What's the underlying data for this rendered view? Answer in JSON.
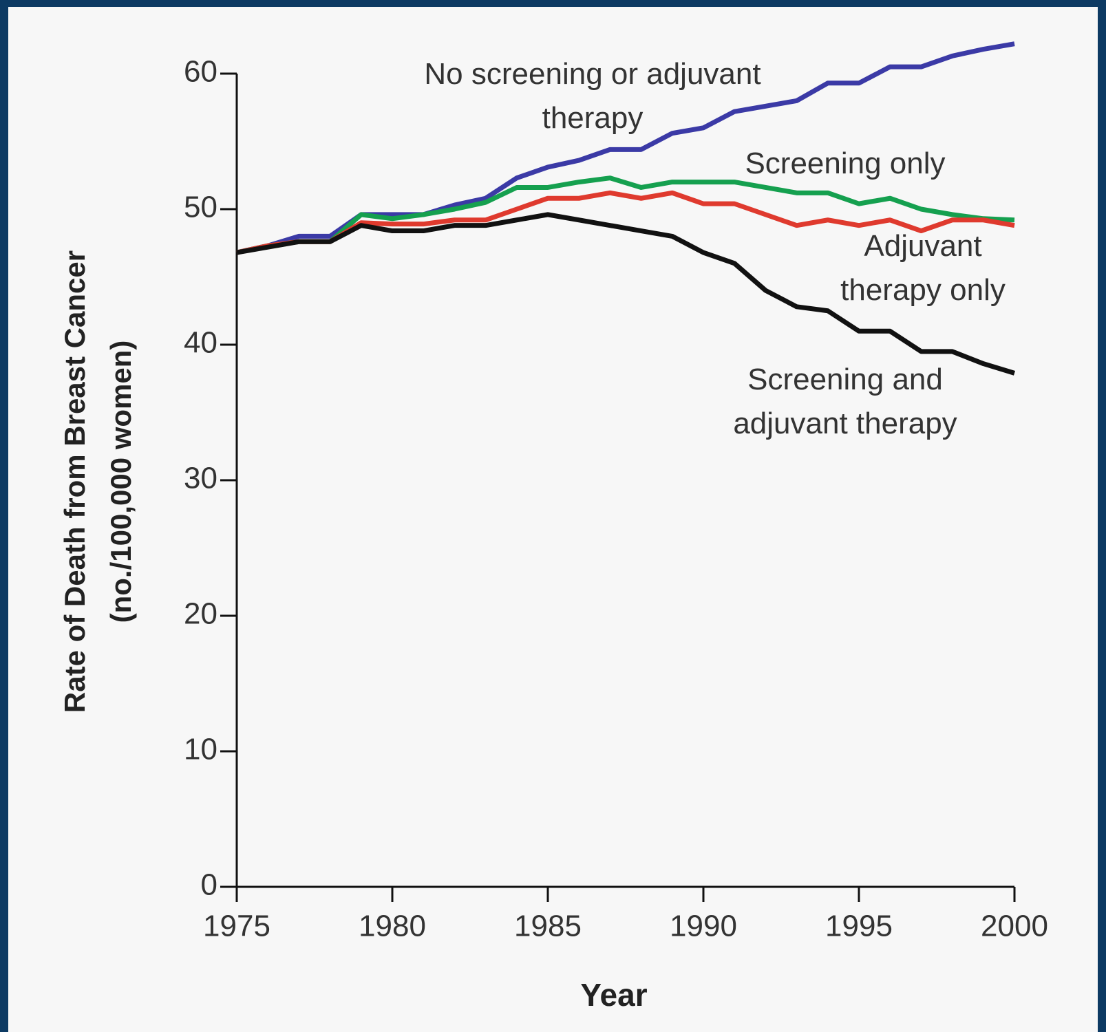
{
  "chart_data": {
    "type": "line",
    "y_label": [
      "Rate of Death from Breast Cancer",
      "(no./100,000 women)"
    ],
    "x_label": "Year",
    "x": [
      1975,
      1976,
      1977,
      1978,
      1979,
      1980,
      1981,
      1982,
      1983,
      1984,
      1985,
      1986,
      1987,
      1988,
      1989,
      1990,
      1991,
      1992,
      1993,
      1994,
      1995,
      1996,
      1997,
      1998,
      1999,
      2000
    ],
    "series": [
      {
        "name": "No screening or adjuvant therapy",
        "color": "#3b3aa6",
        "values": [
          46.8,
          47.3,
          48.0,
          48.0,
          49.6,
          49.6,
          49.6,
          50.3,
          50.8,
          52.3,
          53.1,
          53.6,
          54.4,
          54.4,
          55.6,
          56.0,
          57.2,
          57.6,
          58.0,
          59.3,
          59.3,
          60.5,
          60.5,
          61.3,
          61.8,
          62.2
        ]
      },
      {
        "name": "Screening only",
        "color": "#15a04f",
        "values": [
          46.8,
          47.3,
          47.6,
          47.6,
          49.6,
          49.3,
          49.6,
          50.0,
          50.5,
          51.6,
          51.6,
          52.0,
          52.3,
          51.6,
          52.0,
          52.0,
          52.0,
          51.6,
          51.2,
          51.2,
          50.4,
          50.8,
          50.0,
          49.6,
          49.3,
          49.2
        ]
      },
      {
        "name": "Adjuvant therapy only",
        "color": "#df3a2e",
        "values": [
          46.8,
          47.3,
          47.6,
          47.6,
          49.0,
          48.9,
          48.9,
          49.2,
          49.2,
          50.0,
          50.8,
          50.8,
          51.2,
          50.8,
          51.2,
          50.4,
          50.4,
          49.6,
          48.8,
          49.2,
          48.8,
          49.2,
          48.4,
          49.2,
          49.2,
          48.8
        ]
      },
      {
        "name": "Screening and adjuvant therapy",
        "color": "#111111",
        "values": [
          46.8,
          47.2,
          47.6,
          47.6,
          48.8,
          48.4,
          48.4,
          48.8,
          48.8,
          49.2,
          49.6,
          49.2,
          48.8,
          48.4,
          48.0,
          46.8,
          46.0,
          44.0,
          42.8,
          42.5,
          41.0,
          41.0,
          39.5,
          39.5,
          38.6,
          37.9
        ]
      }
    ],
    "xlim": [
      1975,
      2000
    ],
    "xticks": [
      1975,
      1980,
      1985,
      1990,
      1995,
      2000
    ],
    "ylim": [
      0,
      60
    ],
    "yticks": [
      0,
      10,
      20,
      30,
      40,
      50,
      60
    ],
    "grid": false
  }
}
